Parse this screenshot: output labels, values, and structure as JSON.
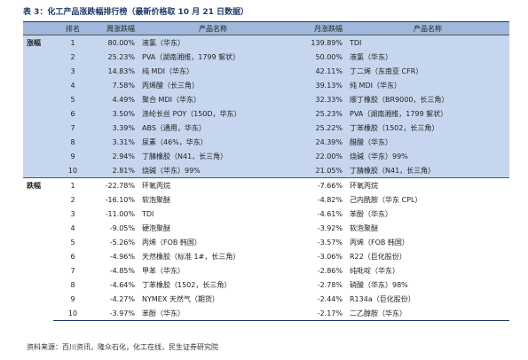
{
  "title": "表 3：化工产品涨跌幅排行榜（最新价格取 10 月 21 日数据）",
  "table": {
    "header": [
      "排名",
      "周涨跌幅",
      "产品名称",
      "月涨跌幅",
      "产品名称"
    ],
    "sections": [
      {
        "label": "涨幅",
        "rows": [
          [
            "1",
            "80.00%",
            "液氯（华东）",
            "139.89%",
            "TDI"
          ],
          [
            "2",
            "25.23%",
            "PVA（湖南湘维，1799 絮状）",
            "50.00%",
            "液氯（华东）"
          ],
          [
            "3",
            "14.83%",
            "纯 MDI（华东）",
            "42.11%",
            "丁二烯（东南亚 CFR）"
          ],
          [
            "4",
            "7.58%",
            "丙烯酸（长三角）",
            "39.13%",
            "纯 MDI（华东）"
          ],
          [
            "5",
            "4.49%",
            "聚合 MDI（华东）",
            "32.33%",
            "顺丁橡胶（BR9000，长三角）"
          ],
          [
            "6",
            "3.50%",
            "涤纶长丝 POY（150D，华东）",
            "25.23%",
            "PVA（湖南湘维，1799 絮状）"
          ],
          [
            "7",
            "3.39%",
            "ABS（通用，华东）",
            "25.22%",
            "丁苯橡胶（1502，长三角）"
          ],
          [
            "8",
            "3.31%",
            "尿素（46%，华东）",
            "24.39%",
            "醋酸（华东）"
          ],
          [
            "9",
            "2.94%",
            "丁腈橡胶（N41，长三角）",
            "22.00%",
            "烧碱（华东）99%"
          ],
          [
            "10",
            "2.81%",
            "烧碱（华东）99%",
            "21.05%",
            "丁腈橡胶（N41，长三角）"
          ]
        ]
      },
      {
        "label": "跌幅",
        "rows": [
          [
            "1",
            "-22.78%",
            "环氧丙烷",
            "-7.66%",
            "环氧丙烷"
          ],
          [
            "2",
            "-16.10%",
            "软泡聚醚",
            "-4.82%",
            "己内酰胺（华东 CPL）"
          ],
          [
            "3",
            "-11.00%",
            "TDI",
            "-4.61%",
            "苯酚（华东）"
          ],
          [
            "4",
            "-9.05%",
            "硬泡聚醚",
            "-3.92%",
            "软泡聚醚"
          ],
          [
            "5",
            "-5.26%",
            "丙烯（FOB 韩国）",
            "-3.57%",
            "丙烯（FOB 韩国）"
          ],
          [
            "6",
            "-4.96%",
            "天然橡胶（标准 1#，长三角）",
            "-3.06%",
            "R22（巨化股份）"
          ],
          [
            "7",
            "-4.85%",
            "甲苯（华东）",
            "-2.86%",
            "纯吡啶（华东）"
          ],
          [
            "8",
            "-4.64%",
            "丁苯橡胶（1502，长三角）",
            "-2.78%",
            "硝酸（华东）98%"
          ],
          [
            "9",
            "-4.27%",
            "NYMEX 天然气（期货）",
            "-2.44%",
            "R134a（巨化股份）"
          ],
          [
            "10",
            "-3.97%",
            "苯酚（华东）",
            "-2.17%",
            "二乙醇胺（华东）"
          ]
        ]
      }
    ]
  },
  "source": "资料来源：百川资讯，隆众石化，化工在线，民生证券研究院"
}
